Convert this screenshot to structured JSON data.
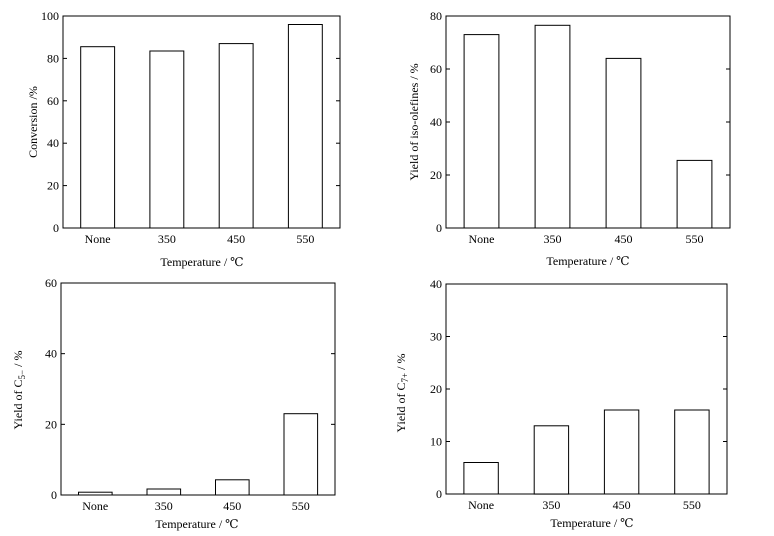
{
  "chart_data": [
    {
      "type": "bar",
      "categories": [
        "None",
        "350",
        "450",
        "550"
      ],
      "values": [
        85.5,
        83.5,
        87,
        96
      ],
      "xlabel": "Temperature / ℃",
      "ylabel": "Conversion /%",
      "ylim": [
        0,
        100
      ],
      "yticks": [
        0,
        20,
        40,
        60,
        80,
        100
      ],
      "grid": false
    },
    {
      "type": "bar",
      "categories": [
        "None",
        "350",
        "450",
        "550"
      ],
      "values": [
        73,
        76.5,
        64,
        25.5
      ],
      "xlabel": "Temperature / ℃",
      "ylabel": "Yield of iso-olefines / %",
      "ylim": [
        0,
        80
      ],
      "yticks": [
        0,
        20,
        40,
        60,
        80
      ],
      "grid": false
    },
    {
      "type": "bar",
      "categories": [
        "None",
        "350",
        "450",
        "550"
      ],
      "values": [
        0.8,
        1.7,
        4.3,
        23
      ],
      "xlabel": "Temperature / ℃",
      "ylabel": "Yield of C",
      "ylabel_sub": "5−",
      "ylabel_suffix": " / %",
      "ylim": [
        0,
        60
      ],
      "yticks": [
        0,
        20,
        40,
        60
      ],
      "grid": false
    },
    {
      "type": "bar",
      "categories": [
        "None",
        "350",
        "450",
        "550"
      ],
      "values": [
        6,
        13,
        16,
        16
      ],
      "xlabel": "Temperature / ℃",
      "ylabel": "Yield of C",
      "ylabel_sub": "7+",
      "ylabel_suffix": " / %",
      "ylim": [
        0,
        40
      ],
      "yticks": [
        0,
        10,
        20,
        30,
        40
      ],
      "grid": false
    }
  ]
}
